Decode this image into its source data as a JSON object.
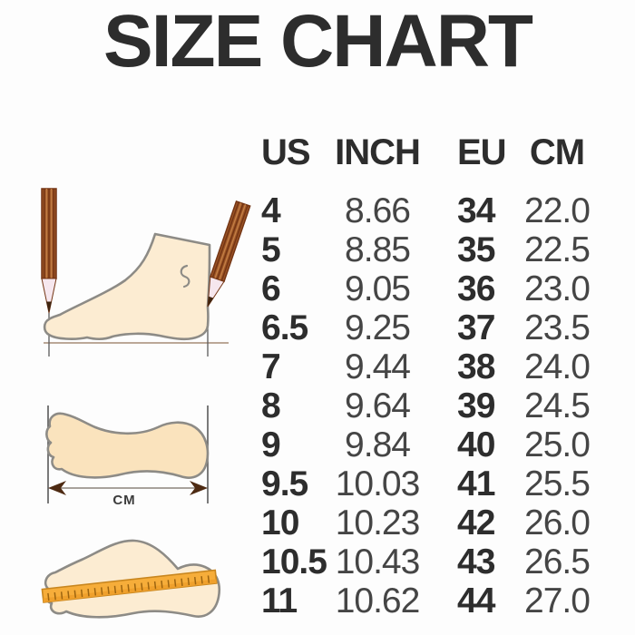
{
  "chart_data": {
    "type": "table",
    "title": "SIZE CHART",
    "columns": [
      "US",
      "INCH",
      "EU",
      "CM"
    ],
    "rows": [
      [
        "4",
        "8.66",
        "34",
        "22.0"
      ],
      [
        "5",
        "8.85",
        "35",
        "22.5"
      ],
      [
        "6",
        "9.05",
        "36",
        "23.0"
      ],
      [
        "6.5",
        "9.25",
        "37",
        "23.5"
      ],
      [
        "7",
        "9.44",
        "38",
        "24.0"
      ],
      [
        "8",
        "9.64",
        "39",
        "24.5"
      ],
      [
        "9",
        "9.84",
        "40",
        "25.0"
      ],
      [
        "9.5",
        "10.03",
        "41",
        "25.5"
      ],
      [
        "10",
        "10.23",
        "42",
        "26.0"
      ],
      [
        "10.5",
        "10.43",
        "43",
        "26.5"
      ],
      [
        "11",
        "10.62",
        "44",
        "27.0"
      ]
    ]
  },
  "illustrations": {
    "cm_label": "CM"
  },
  "theme": {
    "bg": "#fdfdfd",
    "ink": "#2d2d2d",
    "ink-soft": "#454545",
    "outline": "#8d8b86",
    "foot-fill": "#fcecd2",
    "foot-fill-warm": "#fae3bd",
    "pencil-dark": "#743514",
    "pencil-mid": "#9c5526",
    "pencil-light": "#c27e45",
    "pencil-wood": "#f6e7ee",
    "pencil-lead": "#40240f",
    "measure-line": "#a58b77",
    "guide-gray": "#5a5a5a",
    "arrow-shaft": "#8c847c",
    "arrow-head": "#4d2a12",
    "ruler-fill": "#f6ad3a",
    "ruler-edge": "#c8861f",
    "ruler-strip": "#efa02c",
    "ruler-tick": "#9c6410"
  }
}
